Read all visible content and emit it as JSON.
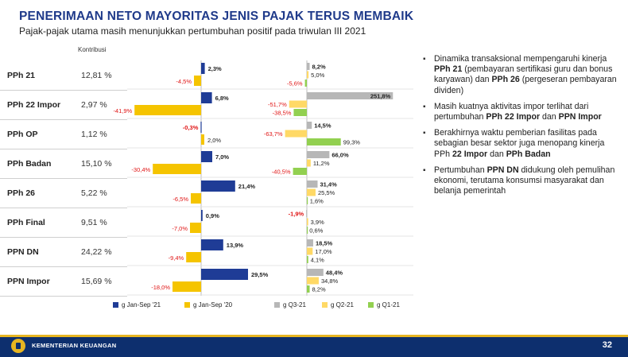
{
  "slide": {
    "title": "PENERIMAAN NETO MAYORITAS JENIS PAJAK TERUS MEMBAIK",
    "subtitle": "Pajak-pajak utama masih menunjukkan pertumbuhan positif pada triwulan III 2021",
    "kontribusi_header": "Kontribusi",
    "footer_text": "KEMENTERIAN KEUANGAN",
    "page_number": "32"
  },
  "colors": {
    "title": "#1f3a8a",
    "jan_sep_21": "#1f3c96",
    "jan_sep_20": "#f5c400",
    "q3_21": "#b7b7b7",
    "q2_21": "#ffd966",
    "q1_21": "#92d050",
    "negative_label": "#e01515",
    "footer": "#0d2f6e"
  },
  "bullets": [
    [
      {
        "t": "Dinamika transaksional mempengaruhi kinerja "
      },
      {
        "t": "PPh 21",
        "b": true
      },
      {
        "t": " (pembayaran sertifikasi guru dan bonus karyawan) dan "
      },
      {
        "t": "PPh 26",
        "b": true
      },
      {
        "t": " (pergeseran pembayaran dividen)"
      }
    ],
    [
      {
        "t": "Masih kuatnya aktivitas impor terlihat dari pertumbuhan "
      },
      {
        "t": "PPh 22 Impor",
        "b": true
      },
      {
        "t": " dan "
      },
      {
        "t": "PPN Impor",
        "b": true
      }
    ],
    [
      {
        "t": "Berakhirnya waktu pemberian fasilitas pada sebagian besar sektor juga menopang kinerja PPh "
      },
      {
        "t": "22 Impor",
        "b": true
      },
      {
        "t": " dan "
      },
      {
        "t": "PPh Badan",
        "b": true
      }
    ],
    [
      {
        "t": "Pertumbuhan "
      },
      {
        "t": "PPN DN",
        "b": true
      },
      {
        "t": " didukung oleh pemulihan ekonomi, terutama konsumsi masyarakat dan belanja pemerintah"
      }
    ]
  ],
  "chart_data": [
    {
      "type": "bar",
      "categories": [
        "PPh 21",
        "PPh 22 Impor",
        "PPh OP",
        "PPh Badan",
        "PPh 26",
        "PPh Final",
        "PPN DN",
        "PPN Impor"
      ],
      "kontribusi": [
        "12,81 %",
        "2,97 %",
        "1,12 %",
        "15,10 %",
        "5,22 %",
        "9,51 %",
        "24,22 %",
        "15,69 %"
      ],
      "series": [
        {
          "name": "g Jan-Sep '21",
          "values": [
            2.3,
            6.8,
            -0.3,
            7.0,
            21.4,
            0.9,
            13.9,
            29.5
          ],
          "labels": [
            "2,3%",
            "6,8%",
            "-0,3%",
            "7,0%",
            "21,4%",
            "0,9%",
            "13,9%",
            "29,5%"
          ]
        },
        {
          "name": "g Jan-Sep '20",
          "values": [
            -4.5,
            -41.9,
            2.0,
            -30.4,
            -6.5,
            -7.0,
            -9.4,
            -18.0
          ],
          "labels": [
            "-4,5%",
            "-41,9%",
            "2,0%",
            "-30,4%",
            "-6,5%",
            "-7,0%",
            "-9,4%",
            "-18,0%"
          ]
        }
      ],
      "orientation": "horizontal"
    },
    {
      "type": "bar",
      "categories": [
        "PPh 21",
        "PPh 22 Impor",
        "PPh OP",
        "PPh Badan",
        "PPh 26",
        "PPh Final",
        "PPN DN",
        "PPN Impor"
      ],
      "series": [
        {
          "name": "g Q3-21",
          "values": [
            8.2,
            251.8,
            14.5,
            66.0,
            31.4,
            -1.9,
            18.5,
            48.4
          ],
          "labels": [
            "8,2%",
            "251,8%",
            "14,5%",
            "66,0%",
            "31,4%",
            "-1,9%",
            "18,5%",
            "48,4%"
          ]
        },
        {
          "name": "g Q2-21",
          "values": [
            5.0,
            -51.7,
            -63.7,
            11.2,
            25.5,
            3.9,
            17.0,
            34.8
          ],
          "labels": [
            "5,0%",
            "-51,7%",
            "-63,7%",
            "11,2%",
            "25,5%",
            "3,9%",
            "17,0%",
            "34,8%"
          ]
        },
        {
          "name": "g Q1-21",
          "values": [
            -5.6,
            -38.5,
            99.3,
            -40.5,
            1.6,
            0.6,
            4.1,
            8.2
          ],
          "labels": [
            "-5,6%",
            "-38,5%",
            "99,3%",
            "-40,5%",
            "1,6%",
            "0,6%",
            "4,1%",
            "8,2%"
          ]
        }
      ],
      "orientation": "horizontal"
    }
  ]
}
